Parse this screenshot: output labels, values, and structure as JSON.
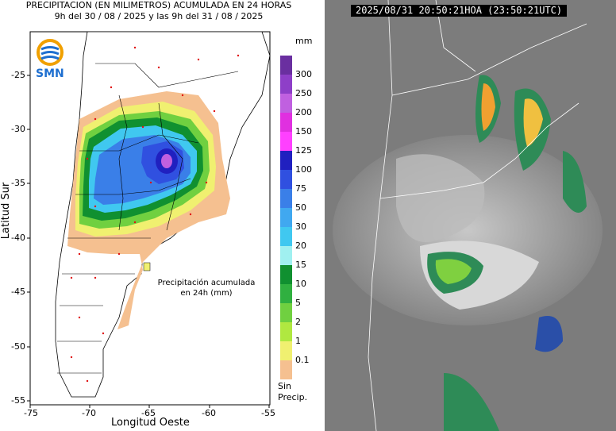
{
  "left_panel": {
    "title_line1": "PRECIPITACION (EN MILIMETROS) ACUMULADA EN 24 HORAS",
    "title_line2": "9h del 30 / 08 / 2025  y las 9h del 31 / 08 / 2025",
    "logo_text": "SMN",
    "x_axis_label": "Longitud Oeste",
    "y_axis_label": "Latitud Sur",
    "x_ticks": [
      "-75",
      "-70",
      "-65",
      "-60",
      "-55"
    ],
    "y_ticks": [
      "-25",
      "-30",
      "-35",
      "-40",
      "-45",
      "-50",
      "-55"
    ],
    "annotation_line1": "Precipitación acumulada",
    "annotation_line2": "en 24h (mm)",
    "legend": {
      "unit": "mm",
      "levels": [
        "300",
        "250",
        "200",
        "150",
        "125",
        "100",
        "75",
        "50",
        "30",
        "20",
        "15",
        "10",
        "5",
        "2",
        "1",
        "0.1"
      ],
      "colors": [
        "#6a2fa0",
        "#8e3fc8",
        "#c060e0",
        "#e030e0",
        "#ff40ff",
        "#2020c0",
        "#3050e0",
        "#3a7fe8",
        "#40a8f0",
        "#40c8f0",
        "#a0f0f0",
        "#109030",
        "#30b040",
        "#70d040",
        "#b0e840",
        "#f0f070",
        "#f5c090"
      ],
      "no_precip_line1": "Sin",
      "no_precip_line2": "Precip."
    }
  },
  "right_panel": {
    "timestamp": "2025/08/31 20:50:21HOA (23:50:21UTC)"
  }
}
